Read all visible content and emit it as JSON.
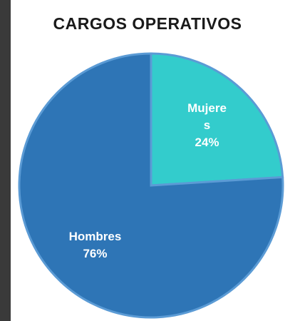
{
  "chart_data": {
    "type": "pie",
    "title": "CARGOS OPERATIVOS",
    "categories": [
      "Mujeres",
      "Hombres"
    ],
    "values": [
      24,
      76
    ],
    "value_labels": [
      "24%",
      "76%"
    ],
    "colors": [
      "#33CCCC",
      "#2E75B6"
    ]
  }
}
